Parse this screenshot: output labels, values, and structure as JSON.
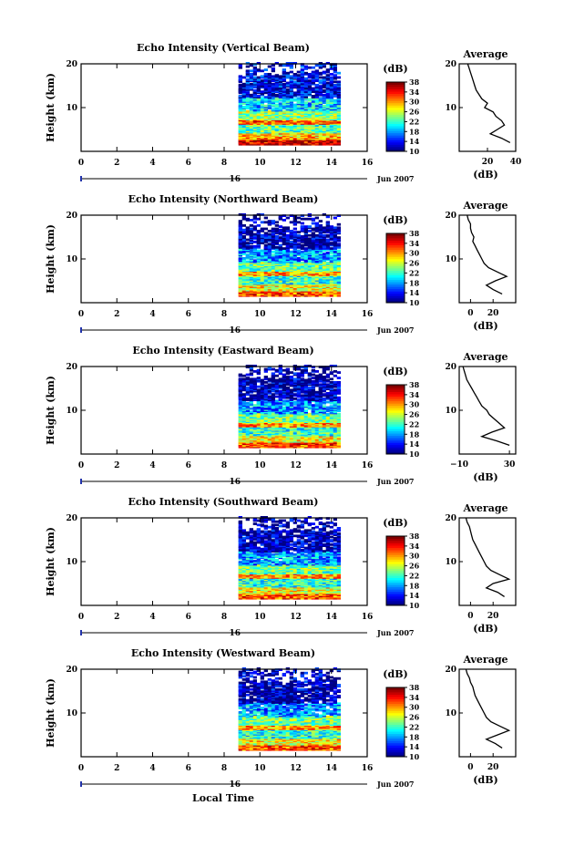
{
  "figure": {
    "x_axis_label": "Local Time",
    "colorbar_unit": "(dB)",
    "date_label": "Jun 2007",
    "day_label": "16",
    "average_title": "Average",
    "average_xlabel": "(dB)"
  },
  "chart_data": [
    {
      "type": "heatmap",
      "title": "Echo Intensity (Vertical Beam)",
      "ylabel": "Height (km)",
      "xlim": [
        0,
        16
      ],
      "ylim": [
        0,
        20
      ],
      "x_ticks": [
        "0",
        "2",
        "4",
        "6",
        "8",
        "10",
        "12",
        "14",
        "16"
      ],
      "y_ticks": [
        "10",
        "20"
      ],
      "colorbar_ticks": [
        "10",
        "14",
        "18",
        "22",
        "26",
        "30",
        "34",
        "38"
      ],
      "data_time_range": [
        8.8,
        14.4
      ],
      "average": {
        "xlim": [
          0,
          40
        ],
        "x_ticks": [
          "20",
          "40"
        ],
        "heights": [
          2,
          3,
          4,
          5,
          6,
          7,
          8,
          9,
          10,
          11,
          12,
          13,
          14,
          15,
          16,
          17,
          18,
          19,
          20
        ],
        "values": [
          36,
          30,
          22,
          27,
          32,
          30,
          26,
          24,
          18,
          20,
          16,
          14,
          12,
          11,
          10,
          9,
          8,
          7,
          6
        ]
      }
    },
    {
      "type": "heatmap",
      "title": "Echo Intensity (Northward Beam)",
      "ylabel": "Height (km)",
      "xlim": [
        0,
        16
      ],
      "ylim": [
        0,
        20
      ],
      "x_ticks": [
        "0",
        "2",
        "4",
        "6",
        "8",
        "10",
        "12",
        "14",
        "16"
      ],
      "y_ticks": [
        "10",
        "20"
      ],
      "colorbar_ticks": [
        "10",
        "14",
        "18",
        "22",
        "26",
        "30",
        "34",
        "38"
      ],
      "data_time_range": [
        8.8,
        14.4
      ],
      "average": {
        "xlim": [
          -10,
          40
        ],
        "x_ticks": [
          "0",
          "20"
        ],
        "heights": [
          2,
          3,
          4,
          5,
          6,
          7,
          8,
          9,
          10,
          11,
          12,
          13,
          14,
          15,
          16,
          17,
          18,
          19,
          20
        ],
        "values": [
          28,
          20,
          14,
          22,
          32,
          24,
          16,
          12,
          10,
          8,
          6,
          4,
          2,
          3,
          1,
          0,
          0,
          -2,
          -3
        ]
      }
    },
    {
      "type": "heatmap",
      "title": "Echo Intensity (Eastward Beam)",
      "ylabel": "Height (km)",
      "xlim": [
        0,
        16
      ],
      "ylim": [
        0,
        20
      ],
      "x_ticks": [
        "0",
        "2",
        "4",
        "6",
        "8",
        "10",
        "12",
        "14",
        "16"
      ],
      "y_ticks": [
        "10",
        "20"
      ],
      "colorbar_ticks": [
        "10",
        "14",
        "18",
        "22",
        "26",
        "30",
        "34",
        "38"
      ],
      "data_time_range": [
        8.8,
        14.4
      ],
      "average": {
        "xlim": [
          -10,
          35
        ],
        "x_ticks": [
          "−10",
          "30"
        ],
        "heights": [
          2,
          3,
          4,
          5,
          6,
          7,
          8,
          9,
          10,
          11,
          12,
          13,
          14,
          15,
          16,
          17,
          18,
          19,
          20
        ],
        "values": [
          30,
          20,
          8,
          16,
          26,
          22,
          18,
          14,
          12,
          8,
          6,
          4,
          2,
          0,
          -2,
          -4,
          -5,
          -6,
          -7
        ]
      }
    },
    {
      "type": "heatmap",
      "title": "Echo Intensity (Southward Beam)",
      "ylabel": "Height (km)",
      "xlim": [
        0,
        16
      ],
      "ylim": [
        0,
        20
      ],
      "x_ticks": [
        "0",
        "2",
        "4",
        "6",
        "8",
        "10",
        "12",
        "14",
        "16"
      ],
      "y_ticks": [
        "10",
        "20"
      ],
      "colorbar_ticks": [
        "10",
        "14",
        "18",
        "22",
        "26",
        "30",
        "34",
        "38"
      ],
      "data_time_range": [
        8.8,
        14.4
      ],
      "average": {
        "xlim": [
          -10,
          40
        ],
        "x_ticks": [
          "0",
          "20"
        ],
        "heights": [
          2,
          3,
          4,
          5,
          6,
          7,
          8,
          9,
          10,
          11,
          12,
          13,
          14,
          15,
          16,
          17,
          18,
          19,
          20
        ],
        "values": [
          30,
          24,
          14,
          20,
          34,
          26,
          18,
          14,
          12,
          10,
          8,
          6,
          4,
          2,
          1,
          0,
          -1,
          -3,
          -4
        ]
      }
    },
    {
      "type": "heatmap",
      "title": "Echo Intensity (Westward Beam)",
      "ylabel": "Height (km)",
      "xlim": [
        0,
        16
      ],
      "ylim": [
        0,
        20
      ],
      "x_ticks": [
        "0",
        "2",
        "4",
        "6",
        "8",
        "10",
        "12",
        "14",
        "16"
      ],
      "y_ticks": [
        "10",
        "20"
      ],
      "colorbar_ticks": [
        "10",
        "14",
        "18",
        "22",
        "26",
        "30",
        "34",
        "38"
      ],
      "data_time_range": [
        8.8,
        14.4
      ],
      "average": {
        "xlim": [
          -10,
          40
        ],
        "x_ticks": [
          "0",
          "20"
        ],
        "heights": [
          2,
          3,
          4,
          5,
          6,
          7,
          8,
          9,
          10,
          11,
          12,
          13,
          14,
          15,
          16,
          17,
          18,
          19,
          20
        ],
        "values": [
          28,
          22,
          14,
          24,
          34,
          26,
          18,
          14,
          12,
          10,
          8,
          6,
          4,
          3,
          2,
          0,
          -1,
          -3,
          -4
        ]
      }
    }
  ]
}
